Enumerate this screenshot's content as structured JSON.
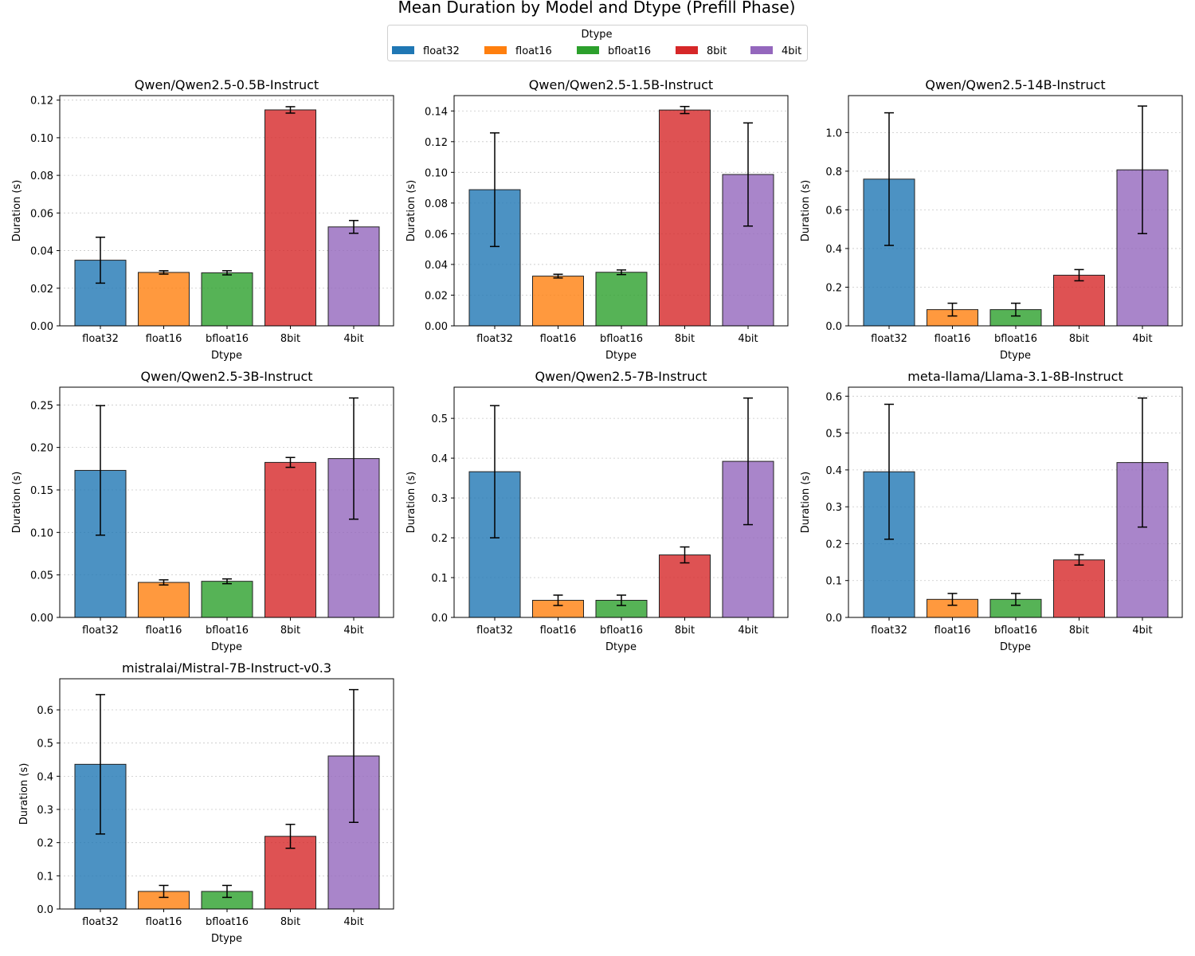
{
  "chart_data": {
    "type": "bar",
    "title": "Mean Duration by Model and Dtype (Prefill Phase)",
    "legend": {
      "title": "Dtype",
      "placement": "top-center",
      "entries": [
        "float32",
        "float16",
        "bfloat16",
        "8bit",
        "4bit"
      ]
    },
    "colors": [
      "#1f77b4",
      "#ff7f0e",
      "#2ca02c",
      "#d62728",
      "#9467bd"
    ],
    "bar_alpha": 0.8,
    "categories": [
      "float32",
      "float16",
      "bfloat16",
      "8bit",
      "4bit"
    ],
    "xlabel": "Dtype",
    "ylabel": "Duration (s)",
    "grid": "y-dotted",
    "panels": [
      {
        "title": "Qwen/Qwen2.5-0.5B-Instruct",
        "values": [
          0.0349,
          0.0284,
          0.0282,
          0.1148,
          0.0526
        ],
        "errors": [
          0.0122,
          0.0009,
          0.0011,
          0.0017,
          0.0034
        ],
        "ylim": [
          0,
          0.1224
        ],
        "yticks": [
          0,
          0.02,
          0.04,
          0.06,
          0.08,
          0.1,
          0.12
        ],
        "tick_labels": [
          "0.00",
          "0.02",
          "0.04",
          "0.06",
          "0.08",
          "0.10",
          "0.12"
        ]
      },
      {
        "title": "Qwen/Qwen2.5-1.5B-Instruct",
        "values": [
          0.0887,
          0.0324,
          0.0349,
          0.1406,
          0.0986
        ],
        "errors": [
          0.037,
          0.0012,
          0.0015,
          0.0023,
          0.0336
        ],
        "ylim": [
          0,
          0.15
        ],
        "yticks": [
          0,
          0.02,
          0.04,
          0.06,
          0.08,
          0.1,
          0.12,
          0.14
        ],
        "tick_labels": [
          "0.00",
          "0.02",
          "0.04",
          "0.06",
          "0.08",
          "0.10",
          "0.12",
          "0.14"
        ]
      },
      {
        "title": "Qwen/Qwen2.5-14B-Instruct",
        "values": [
          0.759,
          0.084,
          0.084,
          0.262,
          0.807
        ],
        "errors": [
          0.343,
          0.033,
          0.033,
          0.029,
          0.33
        ],
        "ylim": [
          0,
          1.191
        ],
        "yticks": [
          0,
          0.2,
          0.4,
          0.6,
          0.8,
          1.0
        ],
        "tick_labels": [
          "0.0",
          "0.2",
          "0.4",
          "0.6",
          "0.8",
          "1.0"
        ]
      },
      {
        "title": "Qwen/Qwen2.5-3B-Instruct",
        "values": [
          0.173,
          0.0412,
          0.0425,
          0.1824,
          0.1869
        ],
        "errors": [
          0.0762,
          0.003,
          0.0028,
          0.0058,
          0.0713
        ],
        "ylim": [
          0,
          0.2709
        ],
        "yticks": [
          0,
          0.05,
          0.1,
          0.15,
          0.2,
          0.25
        ],
        "tick_labels": [
          "0.00",
          "0.05",
          "0.10",
          "0.15",
          "0.20",
          "0.25"
        ]
      },
      {
        "title": "Qwen/Qwen2.5-7B-Instruct",
        "values": [
          0.366,
          0.043,
          0.043,
          0.157,
          0.392
        ],
        "errors": [
          0.166,
          0.013,
          0.013,
          0.02,
          0.159
        ],
        "ylim": [
          0,
          0.5783
        ],
        "yticks": [
          0,
          0.1,
          0.2,
          0.3,
          0.4,
          0.5
        ],
        "tick_labels": [
          "0.0",
          "0.1",
          "0.2",
          "0.3",
          "0.4",
          "0.5"
        ]
      },
      {
        "title": "meta-llama/Llama-3.1-8B-Instruct",
        "values": [
          0.395,
          0.049,
          0.049,
          0.156,
          0.42
        ],
        "errors": [
          0.183,
          0.016,
          0.016,
          0.014,
          0.175
        ],
        "ylim": [
          0,
          0.6244
        ],
        "yticks": [
          0,
          0.1,
          0.2,
          0.3,
          0.4,
          0.5,
          0.6
        ],
        "tick_labels": [
          "0.0",
          "0.1",
          "0.2",
          "0.3",
          "0.4",
          "0.5",
          "0.6"
        ]
      },
      {
        "title": "mistralai/Mistral-7B-Instruct-v0.3",
        "values": [
          0.436,
          0.053,
          0.053,
          0.219,
          0.461
        ],
        "errors": [
          0.21,
          0.018,
          0.018,
          0.036,
          0.2
        ],
        "ylim": [
          0,
          0.6937
        ],
        "yticks": [
          0,
          0.1,
          0.2,
          0.3,
          0.4,
          0.5,
          0.6
        ],
        "tick_labels": [
          "0.0",
          "0.1",
          "0.2",
          "0.3",
          "0.4",
          "0.5",
          "0.6"
        ]
      }
    ]
  }
}
